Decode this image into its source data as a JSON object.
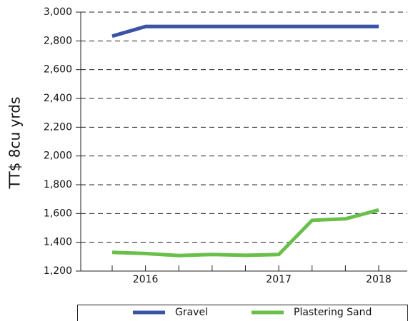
{
  "chart_data": {
    "type": "line",
    "y_label": "TT$ 8cu yrds",
    "categories": [
      null,
      "2016",
      null,
      null,
      null,
      "2017",
      null,
      null,
      "2018"
    ],
    "series": [
      {
        "name": "Gravel",
        "color": "#3a53a4",
        "values": [
          2833,
          2900,
          2900,
          2900,
          2900,
          2900,
          2900,
          2900,
          2900
        ]
      },
      {
        "name": "Plastering Sand",
        "color": "#6abf4b",
        "values": [
          1330,
          1322,
          1308,
          1315,
          1310,
          1315,
          1553,
          1563,
          1625
        ]
      }
    ],
    "ylim": [
      1200,
      3000
    ],
    "yticks": [
      {
        "value": 1200,
        "label": "1,200"
      },
      {
        "value": 1400,
        "label": "1,400"
      },
      {
        "value": 1600,
        "label": "1,600"
      },
      {
        "value": 1800,
        "label": "1,800"
      },
      {
        "value": 2000,
        "label": "2,000"
      },
      {
        "value": 2200,
        "label": "2,200"
      },
      {
        "value": 2400,
        "label": "2,400"
      },
      {
        "value": 2600,
        "label": "2,600"
      },
      {
        "value": 2800,
        "label": "2,800"
      },
      {
        "value": 3000,
        "label": "3,000"
      }
    ],
    "grid": true,
    "legend": "bottom"
  }
}
